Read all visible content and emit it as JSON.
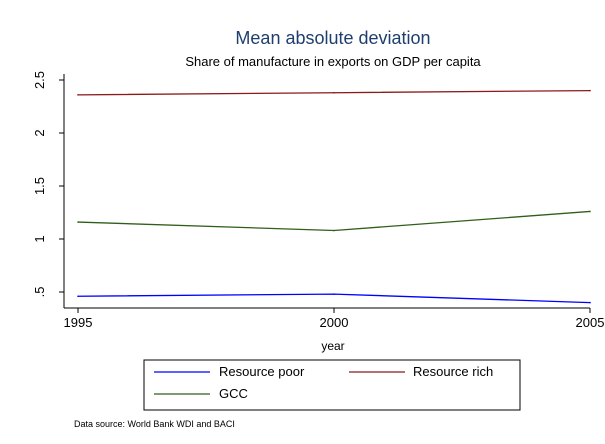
{
  "chart_data": {
    "type": "line",
    "title": "Mean absolute deviation",
    "subtitle": "Share of manufacture in exports on GDP per capita",
    "xlabel": "year",
    "ylabel": "",
    "x": [
      1995,
      2000,
      2005
    ],
    "x_ticks": [
      "1995",
      "2000",
      "2005"
    ],
    "y_ticks": [
      ".5",
      "1",
      "1.5",
      "2",
      "2.5"
    ],
    "xlim": [
      1995,
      2005
    ],
    "ylim": [
      0.5,
      2.5
    ],
    "grid": false,
    "legend_position": "bottom",
    "series": [
      {
        "name": "Resource poor",
        "color": "#0000ff",
        "values": [
          0.46,
          0.48,
          0.4
        ]
      },
      {
        "name": "Resource rich",
        "color": "#8b1a1a",
        "values": [
          2.36,
          2.38,
          2.4
        ]
      },
      {
        "name": "GCC",
        "color": "#2f5f1a",
        "values": [
          1.16,
          1.08,
          1.26
        ]
      }
    ],
    "note": "Data source: World Bank WDI and BACI"
  }
}
